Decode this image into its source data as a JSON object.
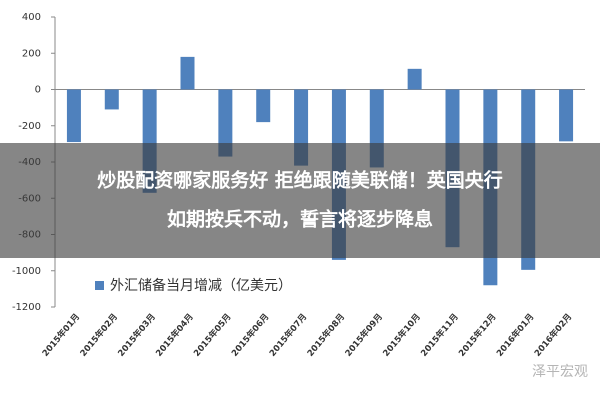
{
  "chart_data": {
    "type": "bar",
    "categories": [
      "2015年01月",
      "2015年02月",
      "2015年03月",
      "2015年04月",
      "2015年05月",
      "2015年06月",
      "2015年07月",
      "2015年08月",
      "2015年09月",
      "2015年10月",
      "2015年11月",
      "2015年12月",
      "2016年01月",
      "2016年02月"
    ],
    "series": [
      {
        "name": "外汇储备当月增减（亿美元）",
        "color": "#4f81bd",
        "values": [
          -290,
          -110,
          -570,
          180,
          -370,
          -180,
          -420,
          -940,
          -430,
          114,
          -870,
          -1080,
          -995,
          -286
        ]
      }
    ],
    "ylim": [
      -1200,
      400
    ],
    "yticks": [
      400,
      200,
      0,
      -200,
      -400,
      -600,
      -800,
      -1000,
      -1200
    ],
    "grid": false
  },
  "overlay": {
    "lines": [
      "炒股配资哪家服务好 拒绝跟随美联储！英国央行",
      "如期按兵不动，誓言将逐步降息"
    ],
    "watermark": "泽平宏观"
  }
}
